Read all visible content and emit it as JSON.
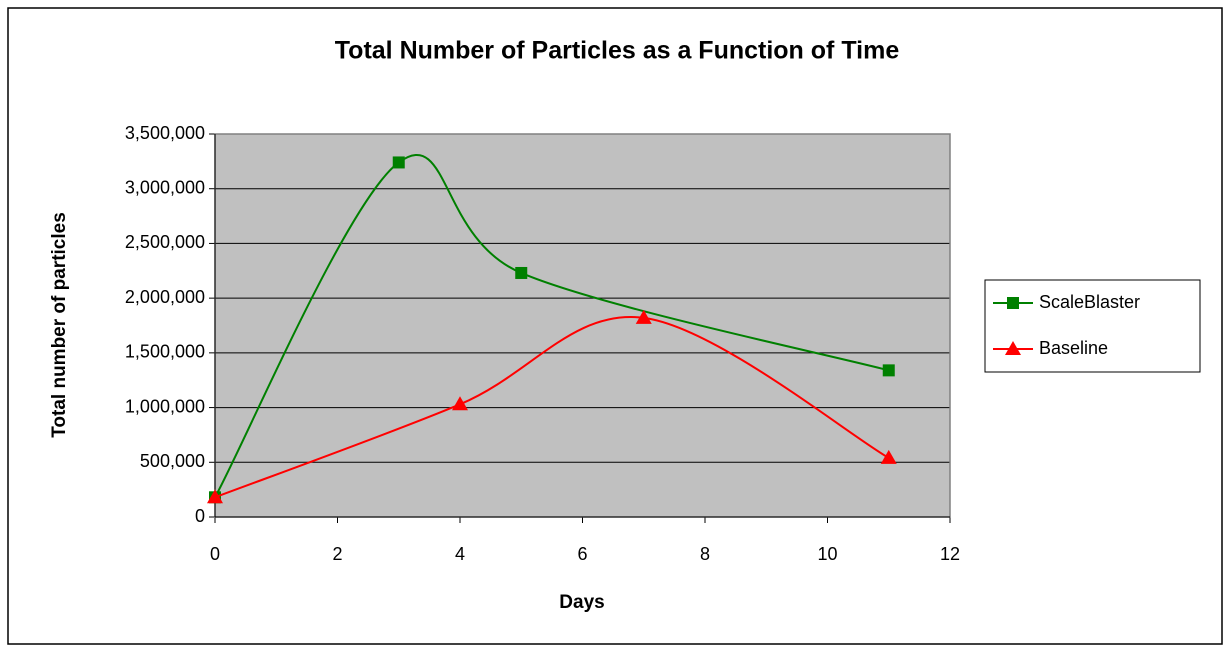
{
  "chart_data": {
    "type": "line",
    "title": "Total Number of Particles as a Function of Time",
    "xlabel": "Days",
    "ylabel": "Total number of particles",
    "smooth": true,
    "grid": true,
    "legend": "right",
    "xlim": [
      0,
      12
    ],
    "xticks": [
      0,
      2,
      4,
      6,
      8,
      10,
      12
    ],
    "ylim": [
      0,
      3500000
    ],
    "yticks": [
      0,
      {
        "value": 500000,
        "label": "500,000"
      },
      {
        "value": 1000000,
        "label": "1,000,000"
      },
      {
        "value": 1500000,
        "label": "1,500,000"
      },
      {
        "value": 2000000,
        "label": "2,000,000"
      },
      {
        "value": 2500000,
        "label": "2,500,000"
      },
      {
        "value": 3000000,
        "label": "3,000,000"
      },
      {
        "value": 3500000,
        "label": "3,500,000"
      }
    ],
    "series": [
      {
        "name": "ScaleBlaster",
        "color": "#008000",
        "marker": "square",
        "x": [
          0,
          3,
          5,
          11
        ],
        "values": [
          180000,
          3240000,
          2230000,
          1340000
        ]
      },
      {
        "name": "Baseline",
        "color": "#ff0000",
        "marker": "triangle",
        "x": [
          0,
          4,
          7,
          11
        ],
        "values": [
          180000,
          1030000,
          1820000,
          540000
        ]
      }
    ]
  }
}
